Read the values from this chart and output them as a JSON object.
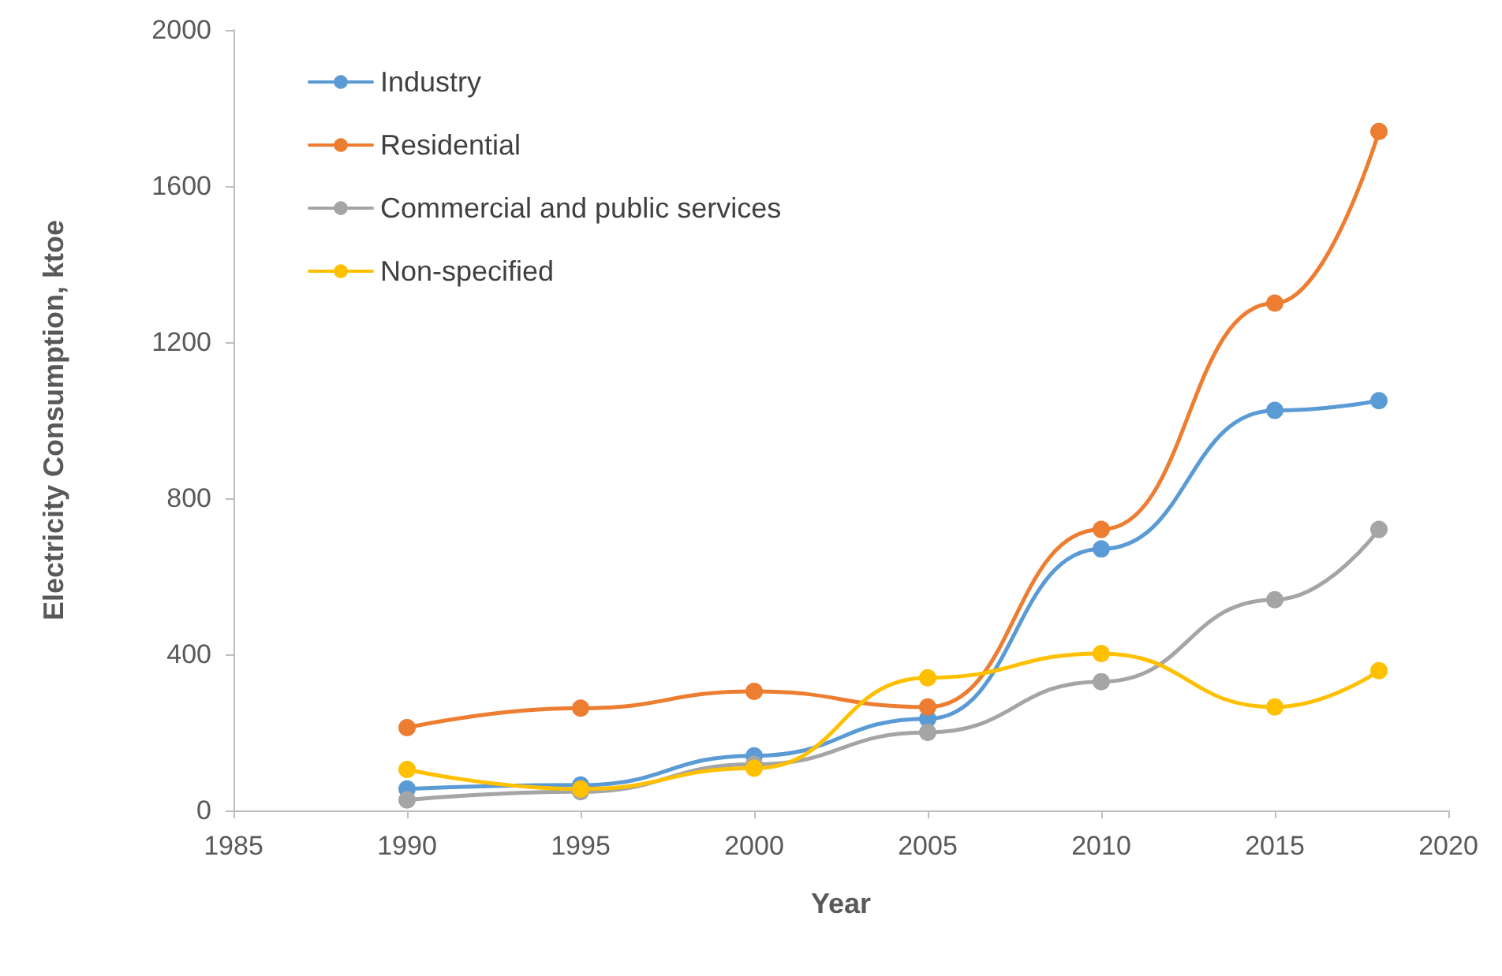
{
  "chart_data": {
    "type": "line",
    "xlabel": "Year",
    "ylabel": "Electricity Consumption, ktoe",
    "x": [
      1990,
      1995,
      2000,
      2005,
      2010,
      2015,
      2018
    ],
    "series": [
      {
        "name": "Industry",
        "color": "#5b9bd5",
        "values": [
          55,
          65,
          140,
          235,
          670,
          1025,
          1050
        ]
      },
      {
        "name": "Residential",
        "color": "#ed7d31",
        "values": [
          212,
          262,
          305,
          265,
          720,
          1300,
          1740
        ]
      },
      {
        "name": "Commercial and public services",
        "color": "#a5a5a5",
        "values": [
          27,
          48,
          118,
          200,
          330,
          540,
          720
        ]
      },
      {
        "name": "Non-specified",
        "color": "#ffc000",
        "values": [
          105,
          55,
          108,
          340,
          402,
          265,
          358
        ]
      }
    ],
    "xlim": [
      1985,
      2020
    ],
    "xticks": [
      1985,
      1990,
      1995,
      2000,
      2005,
      2010,
      2015,
      2020
    ],
    "ylim": [
      0,
      2000
    ],
    "yticks": [
      0,
      400,
      800,
      1200,
      1600,
      2000
    ],
    "grid": false,
    "legend": "top left",
    "marker": "circle",
    "line_style": "solid"
  }
}
